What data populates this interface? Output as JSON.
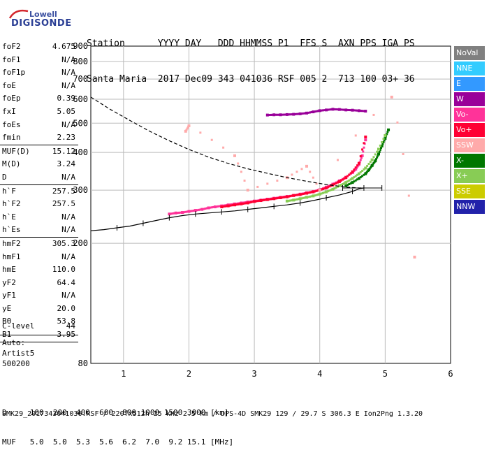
{
  "logo": {
    "top": "Lowell",
    "bottom": "DIGISONDE"
  },
  "header": {
    "line1": "Station      YYYY DAY   DDD HHMMSS P1  FFS S  AXN PPS IGA PS",
    "line2": "Santa Maria  2017 Dec09 343 041036 RSF 005 2  713 100 03+ 36"
  },
  "params": [
    {
      "group": [
        {
          "label": "foF2",
          "value": "4.675"
        },
        {
          "label": "foF1",
          "value": "N/A"
        },
        {
          "label": "foF1p",
          "value": "N/A"
        },
        {
          "label": "foE",
          "value": "N/A"
        },
        {
          "label": "foEp",
          "value": "0.39"
        },
        {
          "label": "fxI",
          "value": "5.05"
        },
        {
          "label": "foEs",
          "value": "N/A"
        },
        {
          "label": "fmin",
          "value": "2.23"
        }
      ]
    },
    {
      "group": [
        {
          "label": "MUF(D)",
          "value": "15.12"
        },
        {
          "label": "M(D)",
          "value": "3.24"
        },
        {
          "label": "D",
          "value": "N/A"
        }
      ]
    },
    {
      "group": [
        {
          "label": "h`F",
          "value": "257.5"
        },
        {
          "label": "h`F2",
          "value": "257.5"
        },
        {
          "label": "h`E",
          "value": "N/A"
        },
        {
          "label": "h`Es",
          "value": "N/A"
        }
      ]
    },
    {
      "group": [
        {
          "label": "hmF2",
          "value": "305.3"
        },
        {
          "label": "hmF1",
          "value": "N/A"
        },
        {
          "label": "hmE",
          "value": "110.0"
        },
        {
          "label": "yF2",
          "value": "64.4"
        },
        {
          "label": "yF1",
          "value": "N/A"
        },
        {
          "label": "yE",
          "value": "20.0"
        },
        {
          "label": "B0",
          "value": "53.8"
        },
        {
          "label": "B1",
          "value": "3.95"
        }
      ]
    }
  ],
  "clevel": {
    "label": "C-level",
    "value": "44"
  },
  "auto": [
    "Auto:",
    "Artist5",
    "500200"
  ],
  "legend": [
    {
      "label": "NoVal",
      "color": "#808080"
    },
    {
      "label": "NNE",
      "color": "#33ccff"
    },
    {
      "label": "E",
      "color": "#3399ff"
    },
    {
      "label": "W",
      "color": "#990099"
    },
    {
      "label": "Vo-",
      "color": "#ff3399"
    },
    {
      "label": "Vo+",
      "color": "#ff0033"
    },
    {
      "label": "SSW",
      "color": "#ffaaaa"
    },
    {
      "label": "X-",
      "color": "#007700"
    },
    {
      "label": "X+",
      "color": "#88cc55"
    },
    {
      "label": "SSE",
      "color": "#cccc00"
    },
    {
      "label": "NNW",
      "color": "#2222aa"
    }
  ],
  "bottom": {
    "line1": "D     100  200  400  600  800 1000 1500 3000 [km]",
    "line2": "MUF   5.0  5.0  5.3  5.6  6.2  7.0  9.2 15.1 [MHz]"
  },
  "footer": "SMK29_2017343041036.RSF / 220fx512h 25 kHz 2.5 km / DPS-4D SMK29 129 / 29.7 S 306.3 E Ion2Png 1.3.20",
  "chart_data": {
    "type": "scatter",
    "xlim": [
      0.5,
      6.0
    ],
    "ylim": [
      80,
      900
    ],
    "y_scale": "log",
    "x_ticks": [
      1,
      2,
      3,
      4,
      5,
      6
    ],
    "y_ticks": [
      80,
      200,
      300,
      400,
      500,
      600,
      700,
      800,
      900
    ],
    "grid": true,
    "series": [
      {
        "name": "Vo-",
        "color": "#ff3399",
        "x": [
          1.7,
          1.8,
          1.9,
          2.0,
          2.1,
          2.2,
          2.3,
          2.4,
          2.5,
          2.6,
          2.7,
          2.8,
          2.9,
          3.0,
          3.1,
          3.2,
          3.3,
          3.4,
          3.5,
          3.6,
          3.7,
          3.8,
          3.9,
          4.0,
          4.1,
          4.2,
          4.3,
          4.4,
          4.5,
          4.55,
          4.6,
          4.65,
          4.7
        ],
        "y": [
          250,
          252,
          253,
          255,
          257,
          259,
          262,
          264,
          266,
          268,
          270,
          272,
          274,
          276,
          278,
          280,
          282,
          284,
          286,
          288,
          291,
          294,
          297,
          301,
          307,
          314,
          322,
          331,
          343,
          352,
          365,
          390,
          440
        ]
      },
      {
        "name": "Vo+",
        "color": "#ff0033",
        "x": [
          2.5,
          2.6,
          2.7,
          2.8,
          2.9,
          3.0,
          3.1,
          3.2,
          3.3,
          3.4,
          3.5,
          3.6,
          3.7,
          3.8,
          3.9,
          4.0,
          4.1,
          4.2,
          4.3,
          4.4,
          4.5,
          4.6,
          4.7
        ],
        "y": [
          264,
          266,
          268,
          270,
          272,
          275,
          277,
          279,
          281,
          283,
          285,
          288,
          290,
          293,
          296,
          300,
          305,
          312,
          320,
          330,
          345,
          368,
          450
        ]
      },
      {
        "name": "X-",
        "color": "#007700",
        "x": [
          4.4,
          4.5,
          4.6,
          4.7,
          4.75,
          4.8,
          4.85,
          4.9,
          4.95,
          5.0,
          5.05
        ],
        "y": [
          310,
          318,
          328,
          340,
          350,
          362,
          375,
          395,
          420,
          445,
          475
        ]
      },
      {
        "name": "X+",
        "color": "#88cc55",
        "x": [
          3.5,
          3.6,
          3.7,
          3.8,
          3.9,
          4.0,
          4.1,
          4.2,
          4.3,
          4.4,
          4.5,
          4.6,
          4.7,
          4.8,
          4.9,
          5.0
        ],
        "y": [
          276,
          278,
          281,
          284,
          287,
          291,
          296,
          302,
          310,
          318,
          328,
          340,
          355,
          378,
          410,
          455
        ]
      },
      {
        "name": "W",
        "color": "#990099",
        "x": [
          3.2,
          3.3,
          3.4,
          3.5,
          3.6,
          3.7,
          3.8,
          3.9,
          4.0,
          4.1,
          4.2,
          4.3,
          4.4,
          4.5,
          4.6,
          4.7
        ],
        "y": [
          532,
          533,
          533,
          534,
          535,
          537,
          540,
          545,
          550,
          553,
          556,
          555,
          553,
          552,
          550,
          548
        ]
      },
      {
        "name": "SSW",
        "color": "#ffaaaa",
        "x": [
          1.95,
          2.0,
          2.7,
          2.9,
          3.5,
          3.8,
          4.0,
          5.1,
          5.45
        ],
        "y": [
          470,
          490,
          390,
          300,
          330,
          360,
          300,
          610,
          180
        ]
      }
    ],
    "profile_x": [
      0.5,
      0.7,
      0.9,
      1.1,
      1.3,
      1.5,
      1.7,
      1.9,
      2.1,
      2.3,
      2.5,
      2.7,
      2.9,
      3.1,
      3.3,
      3.5,
      3.7,
      3.9,
      4.1,
      4.3,
      4.5,
      4.6,
      4.675
    ],
    "profile_y": [
      220,
      222,
      225,
      228,
      233,
      238,
      243,
      247,
      250,
      252,
      254,
      256,
      259,
      262,
      265,
      268,
      272,
      277,
      283,
      289,
      297,
      303,
      305
    ],
    "upper_profile_x": [
      0.5,
      0.8,
      1.1,
      1.4,
      1.7,
      2.0,
      2.3,
      2.6,
      2.9,
      3.2,
      3.5,
      3.8,
      4.1,
      4.4,
      4.6,
      4.675
    ],
    "upper_profile_y": [
      610,
      555,
      510,
      470,
      437,
      409,
      386,
      368,
      353,
      341,
      330,
      321,
      313,
      307,
      305,
      305
    ]
  }
}
